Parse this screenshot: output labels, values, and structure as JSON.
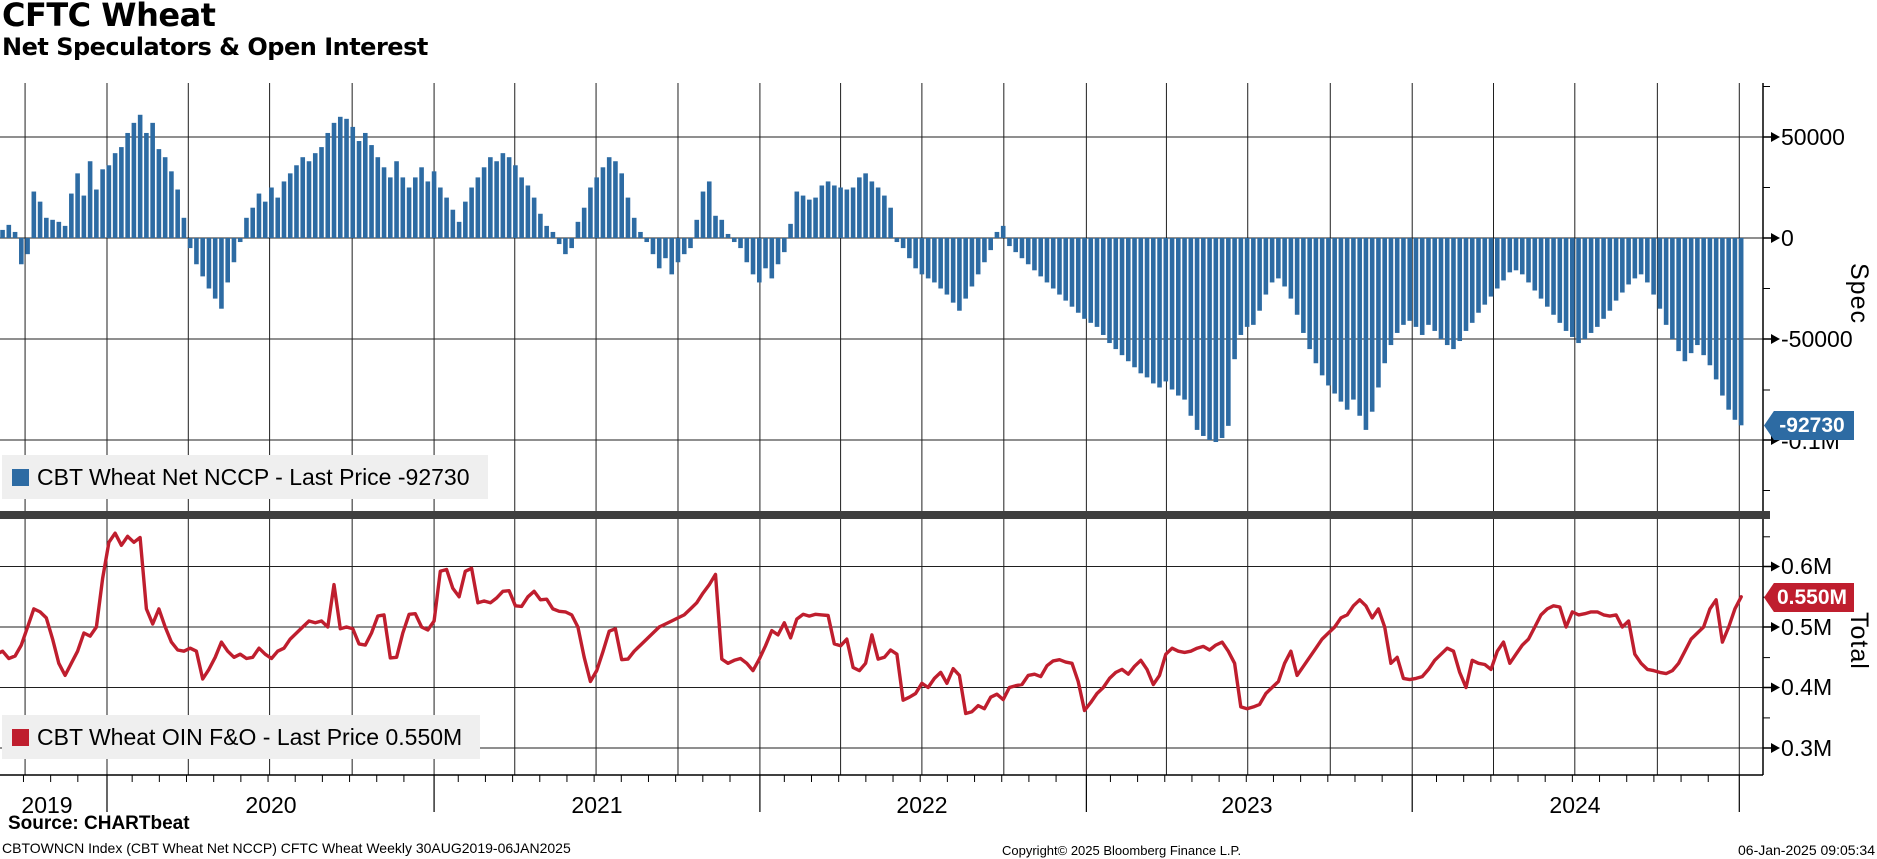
{
  "header": {
    "title": "CFTC Wheat",
    "subtitle": "Net Speculators & Open Interest"
  },
  "colors": {
    "bar": "#2d6ba3",
    "line": "#bf1e2e",
    "grid": "#1f1f1f",
    "axis": "#000000",
    "divider": "#3f3f3f",
    "legend_bg": "#efefef",
    "tag_spec_bg": "#2d6ba3",
    "tag_total_bg": "#bf1e2e"
  },
  "axes": {
    "spec": {
      "title": "Spec",
      "ticks": [
        {
          "label": "50000"
        },
        {
          "label": "0"
        },
        {
          "label": "-50000"
        },
        {
          "label": "-0.1M"
        }
      ]
    },
    "total": {
      "title": "Total",
      "ticks": [
        {
          "label": "0.6M"
        },
        {
          "label": "0.5M"
        },
        {
          "label": "0.4M"
        },
        {
          "label": "0.3M"
        }
      ]
    },
    "x": {
      "years": [
        "2019",
        "2020",
        "2021",
        "2022",
        "2023",
        "2024"
      ]
    }
  },
  "legends": {
    "spec": "CBT Wheat Net NCCP - Last Price -92730",
    "total": "CBT Wheat OIN F&O - Last Price 0.550M"
  },
  "tags": {
    "spec": "-92730",
    "total": "0.550M"
  },
  "footer": {
    "source": "Source: CHARTbeat",
    "security": "CBTOWNCN Index (CBT Wheat Net NCCP) CFTC Wheat  Weekly 30AUG2019-06JAN2025",
    "copyright": "Copyright© 2025 Bloomberg Finance L.P.",
    "timestamp": "06-Jan-2025 09:05:34"
  },
  "chart_data": {
    "type": "bar+line",
    "x": {
      "start": "30AUG2019",
      "end": "06JAN2025",
      "frequency": "weekly",
      "points": 280,
      "year_labels": [
        "2019",
        "2020",
        "2021",
        "2022",
        "2023",
        "2024"
      ]
    },
    "panels": [
      {
        "panel": "top",
        "type": "bar",
        "name": "CBT Wheat Net NCCP",
        "ylabel": "Spec",
        "ylim": [
          -115000,
          77000
        ],
        "yticks": [
          50000,
          0,
          -50000,
          -100000
        ],
        "last_price": -92730,
        "values_thousands": [
          -7,
          4,
          6.5,
          3,
          -13,
          -8,
          23,
          18,
          10,
          9,
          8,
          6,
          22,
          32,
          21,
          38,
          24,
          34,
          36,
          42,
          45,
          52,
          57,
          61,
          52,
          57,
          44,
          40,
          33,
          24,
          10,
          -5,
          -13,
          -19,
          -25,
          -30,
          -35,
          -22,
          -12,
          -2,
          10,
          15,
          22,
          18,
          25,
          20,
          28,
          32,
          36,
          40,
          38,
          42,
          45,
          52,
          57,
          60,
          59,
          55,
          48,
          52,
          46,
          40,
          35,
          30,
          38,
          30,
          25,
          30,
          35,
          28,
          33,
          25,
          20,
          14,
          8,
          18,
          25,
          30,
          35,
          40,
          38,
          42,
          40,
          36,
          30,
          26,
          20,
          12,
          6,
          3,
          -3,
          -8,
          -5,
          8,
          15,
          25,
          30,
          35,
          40,
          38,
          32,
          20,
          10,
          3,
          -2,
          -8,
          -15,
          -10,
          -18,
          -12,
          -8,
          -5,
          9,
          23,
          28,
          11,
          9,
          2,
          -2,
          -5,
          -12,
          -18,
          -22,
          -15,
          -20,
          -13,
          -7,
          7,
          23,
          21,
          19,
          20,
          26,
          28,
          26,
          25,
          24,
          25,
          30,
          32,
          28,
          25,
          21,
          15,
          -2,
          -5,
          -10,
          -15,
          -18,
          -20,
          -22,
          -25,
          -28,
          -32,
          -36,
          -30,
          -24,
          -18,
          -12,
          -6,
          3,
          6,
          -4,
          -7,
          -10,
          -13,
          -16,
          -19,
          -22,
          -25,
          -28,
          -31,
          -34,
          -37,
          -40,
          -42,
          -44,
          -48,
          -52,
          -55,
          -58,
          -61,
          -64,
          -67,
          -69,
          -72,
          -74,
          -71,
          -75,
          -78,
          -80,
          -88,
          -95,
          -98,
          -100,
          -101,
          -99,
          -93,
          -60,
          -48,
          -44,
          -43,
          -36,
          -28,
          -22,
          -20,
          -24,
          -30,
          -38,
          -47,
          -55,
          -62,
          -68,
          -73,
          -77,
          -81,
          -85,
          -80,
          -88,
          -95,
          -86,
          -74,
          -62,
          -53,
          -47,
          -43,
          -41,
          -44,
          -48,
          -43,
          -46,
          -50,
          -53,
          -55,
          -51,
          -46,
          -42,
          -37,
          -33,
          -29,
          -25,
          -21,
          -17,
          -16,
          -18,
          -22,
          -26,
          -30,
          -34,
          -38,
          -42,
          -46,
          -49,
          -52,
          -50,
          -47,
          -44,
          -40,
          -36,
          -31,
          -27,
          -23,
          -20,
          -18,
          -22,
          -28,
          -35,
          -43,
          -50,
          -56,
          -61,
          -57,
          -53,
          -58,
          -63,
          -70,
          -78,
          -85,
          -90,
          -92.73
        ]
      },
      {
        "panel": "bottom",
        "type": "line",
        "name": "CBT Wheat OIN F&O",
        "ylabel": "Total",
        "ylim_millions": [
          0.27,
          0.68
        ],
        "yticks_millions": [
          0.6,
          0.5,
          0.4,
          0.3
        ],
        "last_price_millions": 0.55,
        "values_millions": [
          0.455,
          0.46,
          0.448,
          0.452,
          0.47,
          0.5,
          0.53,
          0.525,
          0.515,
          0.48,
          0.44,
          0.42,
          0.44,
          0.46,
          0.49,
          0.485,
          0.5,
          0.58,
          0.64,
          0.655,
          0.635,
          0.65,
          0.64,
          0.648,
          0.53,
          0.505,
          0.53,
          0.5,
          0.475,
          0.462,
          0.46,
          0.465,
          0.46,
          0.414,
          0.43,
          0.45,
          0.475,
          0.46,
          0.45,
          0.455,
          0.448,
          0.45,
          0.465,
          0.455,
          0.448,
          0.46,
          0.465,
          0.48,
          0.49,
          0.5,
          0.51,
          0.507,
          0.51,
          0.5,
          0.57,
          0.497,
          0.5,
          0.497,
          0.472,
          0.47,
          0.49,
          0.518,
          0.52,
          0.449,
          0.45,
          0.49,
          0.521,
          0.522,
          0.5,
          0.495,
          0.51,
          0.592,
          0.595,
          0.564,
          0.55,
          0.592,
          0.597,
          0.54,
          0.543,
          0.54,
          0.548,
          0.559,
          0.56,
          0.535,
          0.534,
          0.55,
          0.559,
          0.545,
          0.546,
          0.53,
          0.526,
          0.525,
          0.52,
          0.5,
          0.45,
          0.41,
          0.428,
          0.459,
          0.493,
          0.497,
          0.446,
          0.447,
          0.46,
          0.47,
          0.48,
          0.49,
          0.5,
          0.505,
          0.51,
          0.515,
          0.52,
          0.53,
          0.54,
          0.556,
          0.57,
          0.587,
          0.447,
          0.44,
          0.445,
          0.448,
          0.44,
          0.428,
          0.447,
          0.469,
          0.494,
          0.487,
          0.507,
          0.482,
          0.513,
          0.521,
          0.518,
          0.521,
          0.52,
          0.519,
          0.472,
          0.469,
          0.48,
          0.433,
          0.428,
          0.44,
          0.487,
          0.447,
          0.45,
          0.462,
          0.455,
          0.379,
          0.384,
          0.39,
          0.407,
          0.4,
          0.415,
          0.425,
          0.407,
          0.431,
          0.42,
          0.357,
          0.36,
          0.37,
          0.365,
          0.384,
          0.389,
          0.38,
          0.4,
          0.403,
          0.405,
          0.42,
          0.422,
          0.418,
          0.436,
          0.444,
          0.446,
          0.442,
          0.44,
          0.41,
          0.362,
          0.375,
          0.39,
          0.4,
          0.415,
          0.425,
          0.43,
          0.422,
          0.435,
          0.445,
          0.43,
          0.405,
          0.42,
          0.455,
          0.465,
          0.46,
          0.458,
          0.46,
          0.465,
          0.468,
          0.462,
          0.47,
          0.475,
          0.46,
          0.44,
          0.368,
          0.365,
          0.368,
          0.372,
          0.39,
          0.4,
          0.41,
          0.44,
          0.46,
          0.42,
          0.435,
          0.45,
          0.465,
          0.48,
          0.49,
          0.5,
          0.515,
          0.52,
          0.535,
          0.545,
          0.535,
          0.515,
          0.53,
          0.5,
          0.44,
          0.45,
          0.415,
          0.413,
          0.415,
          0.418,
          0.43,
          0.445,
          0.455,
          0.465,
          0.46,
          0.425,
          0.4,
          0.445,
          0.44,
          0.438,
          0.43,
          0.46,
          0.475,
          0.44,
          0.455,
          0.47,
          0.48,
          0.5,
          0.52,
          0.53,
          0.535,
          0.533,
          0.5,
          0.525,
          0.52,
          0.522,
          0.525,
          0.525,
          0.52,
          0.518,
          0.52,
          0.5,
          0.51,
          0.455,
          0.44,
          0.43,
          0.428,
          0.425,
          0.423,
          0.428,
          0.44,
          0.46,
          0.48,
          0.49,
          0.5,
          0.53,
          0.545,
          0.475,
          0.5,
          0.53,
          0.55
        ]
      }
    ]
  }
}
